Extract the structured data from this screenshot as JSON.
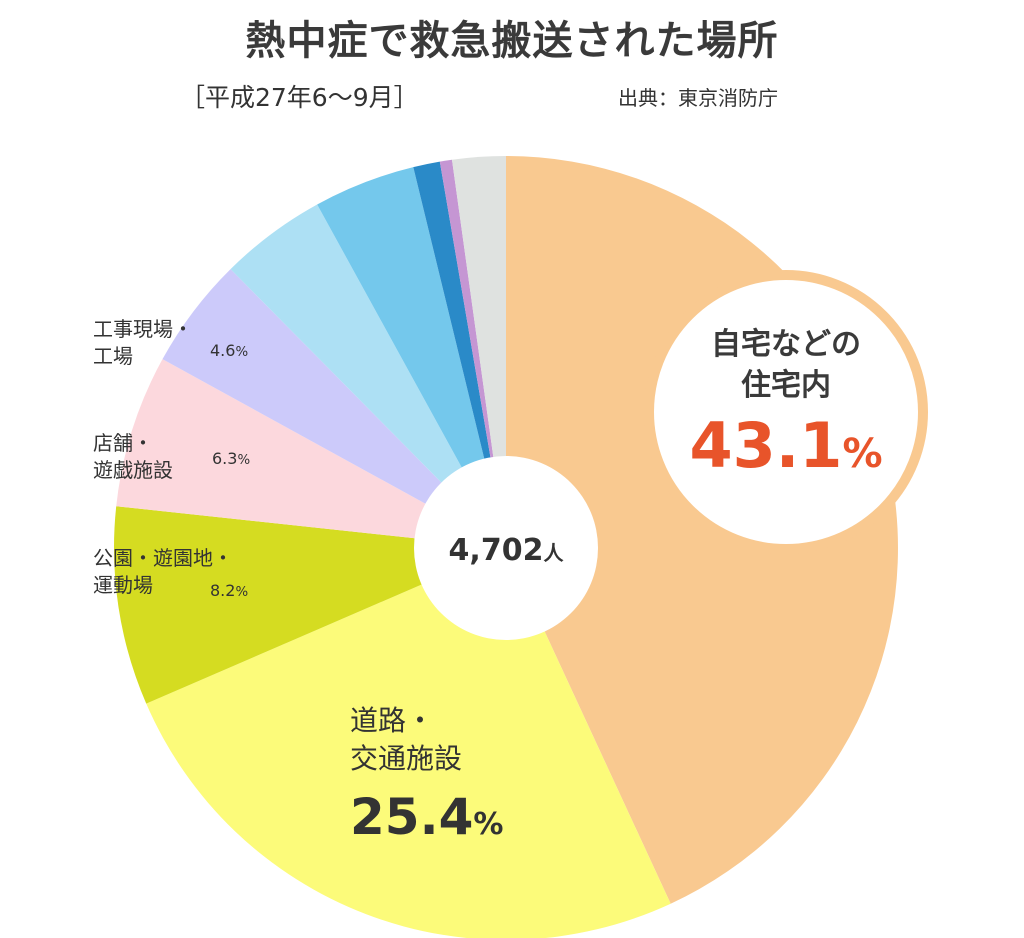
{
  "title": "熱中症で救急搬送された場所",
  "subtitle": "［平成27年6～9月］",
  "source": "出典：東京消防庁",
  "center_label": "4,702",
  "center_unit": "人",
  "colors": {
    "home": "#f9c990",
    "road": "#fcfb7a",
    "park": "#d5dc21",
    "shop": "#fcd8dd",
    "work": "#cccafa",
    "other1": "#ade0f4",
    "other2": "#74c8ec",
    "other3": "#2a8ac8",
    "other4": "#c596d3",
    "other5": "#dfe2e0"
  },
  "chart_data": {
    "type": "pie",
    "title": "熱中症で救急搬送された場所",
    "subtitle": "［平成27年6～9月］",
    "total": "4,702人",
    "slices": [
      {
        "key": "home",
        "label": "自宅などの住宅内",
        "value": 43.1
      },
      {
        "key": "road",
        "label": "道路・交通施設",
        "value": 25.4
      },
      {
        "key": "park",
        "label": "公園・遊園地・運動場",
        "value": 8.2
      },
      {
        "key": "shop",
        "label": "店舗・遊戯施設",
        "value": 6.3
      },
      {
        "key": "work",
        "label": "工事現場・工場",
        "value": 4.6
      },
      {
        "key": "other1",
        "label": "",
        "value": 4.4
      },
      {
        "key": "other2",
        "label": "",
        "value": 4.2
      },
      {
        "key": "other3",
        "label": "",
        "value": 1.1
      },
      {
        "key": "other4",
        "label": "",
        "value": 0.5
      },
      {
        "key": "other5",
        "label": "",
        "value": 2.2
      }
    ]
  },
  "labels": {
    "home": {
      "line1": "自宅などの",
      "line2": "住宅内",
      "pct": "43.1",
      "unit": "%"
    },
    "road": {
      "line1": "道路・",
      "line2": "交通施設",
      "pct": "25.4",
      "unit": "%"
    },
    "park": {
      "line1": "公園・遊園地・",
      "line2": "運動場",
      "pct": "8.2",
      "unit": "%"
    },
    "shop": {
      "line1": "店舗・",
      "line2": "遊戯施設",
      "pct": "6.3",
      "unit": "%"
    },
    "work": {
      "line1": "工事現場・",
      "line2": "工場",
      "pct": "4.6",
      "unit": "%"
    }
  }
}
